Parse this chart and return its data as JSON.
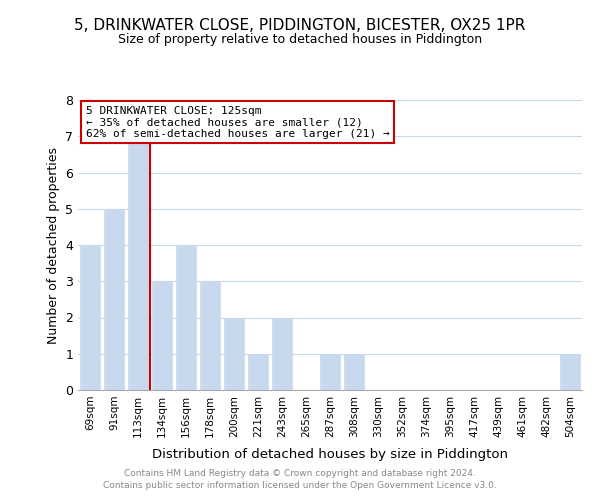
{
  "title": "5, DRINKWATER CLOSE, PIDDINGTON, BICESTER, OX25 1PR",
  "subtitle": "Size of property relative to detached houses in Piddington",
  "xlabel": "Distribution of detached houses by size in Piddington",
  "ylabel": "Number of detached properties",
  "bar_labels": [
    "69sqm",
    "91sqm",
    "113sqm",
    "134sqm",
    "156sqm",
    "178sqm",
    "200sqm",
    "221sqm",
    "243sqm",
    "265sqm",
    "287sqm",
    "308sqm",
    "330sqm",
    "352sqm",
    "374sqm",
    "395sqm",
    "417sqm",
    "439sqm",
    "461sqm",
    "482sqm",
    "504sqm"
  ],
  "bar_values": [
    4,
    5,
    7,
    3,
    4,
    3,
    2,
    1,
    2,
    0,
    1,
    1,
    0,
    0,
    0,
    0,
    0,
    0,
    0,
    0,
    1
  ],
  "bar_color": "#c8d9ee",
  "property_line_x": 2.5,
  "annotation_text_line1": "5 DRINKWATER CLOSE: 125sqm",
  "annotation_text_line2": "← 35% of detached houses are smaller (12)",
  "annotation_text_line3": "62% of semi-detached houses are larger (21) →",
  "annotation_box_color": "#ffffff",
  "annotation_border_color": "#cc0000",
  "property_line_color": "#cc0000",
  "ylim": [
    0,
    8
  ],
  "yticks": [
    0,
    1,
    2,
    3,
    4,
    5,
    6,
    7,
    8
  ],
  "background_color": "#ffffff",
  "grid_color": "#c8d8ec",
  "footer_line1": "Contains HM Land Registry data © Crown copyright and database right 2024.",
  "footer_line2": "Contains public sector information licensed under the Open Government Licence v3.0."
}
